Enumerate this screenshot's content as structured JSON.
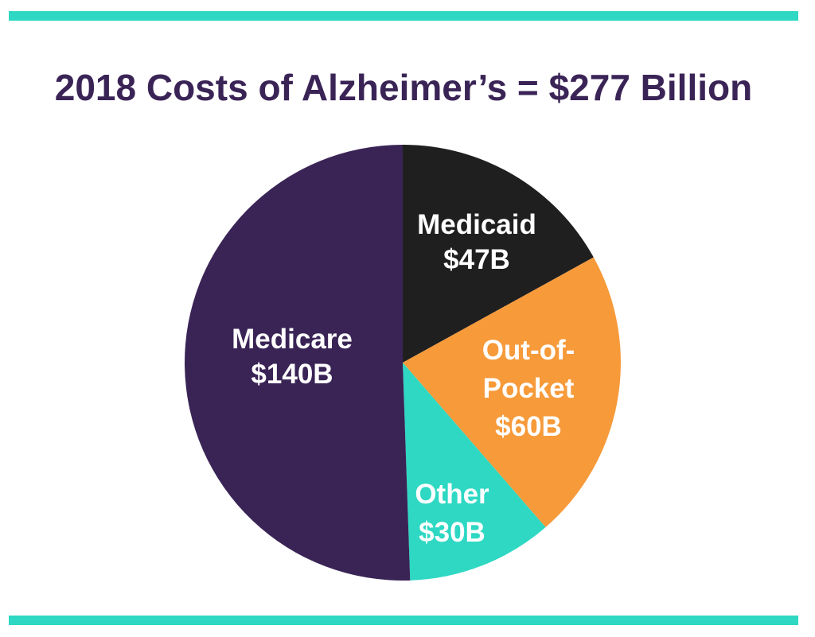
{
  "colors": {
    "accent_bar": "#2ed8c3",
    "title": "#3a2456",
    "medicare": "#3a2456",
    "medicaid": "#1f1f1f",
    "out_of_pocket": "#f79a3a",
    "other": "#2ed8c3"
  },
  "title": "2018 Costs of Alzheimer’s = $277 Billion",
  "labels": {
    "medicare": {
      "name": "Medicare",
      "value": "$140B"
    },
    "medicaid": {
      "name": "Medicaid",
      "value": "$47B"
    },
    "out_of_pocket": {
      "line1": "Out-of-",
      "line2": "Pocket",
      "value": "$60B"
    },
    "other": {
      "name": "Other",
      "value": "$30B"
    }
  },
  "chart_data": {
    "type": "pie",
    "title": "2018 Costs of Alzheimer’s = $277 Billion",
    "total": 277,
    "unit": "Billion USD",
    "categories": [
      "Medicaid",
      "Out-of-Pocket",
      "Other",
      "Medicare"
    ],
    "values": [
      47,
      60,
      30,
      140
    ],
    "value_labels": [
      "$47B",
      "$60B",
      "$30B",
      "$140B"
    ],
    "colors": [
      "#1f1f1f",
      "#f79a3a",
      "#2ed8c3",
      "#3a2456"
    ],
    "start_angle": "12 o'clock",
    "direction": "clockwise",
    "legend": "none (labels inside slices)"
  }
}
